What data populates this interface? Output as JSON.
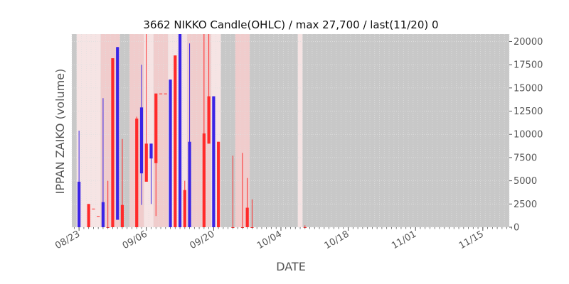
{
  "chart_data": {
    "type": "candlestick",
    "title": "3662 NIKKO Candle(OHLC) / max 27,700 / last(11/20) 0",
    "xlabel": "DATE",
    "ylabel": "IPPAN ZAIKO (volume)",
    "ylim": [
      0,
      20800
    ],
    "y_ticks": [
      0,
      2500,
      5000,
      7500,
      10000,
      12500,
      15000,
      17500,
      20000
    ],
    "y_tick_labels": [
      "0",
      "2500",
      "5000",
      "7500",
      "10000",
      "12500",
      "15000",
      "17500",
      "20000"
    ],
    "y_axis_side": "right",
    "x_range": [
      "2023-08-22",
      "2023-11-21"
    ],
    "x_ticks": [
      {
        "date": "2023-08-23",
        "label": "08/23"
      },
      {
        "date": "2023-09-06",
        "label": "09/06"
      },
      {
        "date": "2023-09-20",
        "label": "09/20"
      },
      {
        "date": "2023-10-04",
        "label": "10/04"
      },
      {
        "date": "2023-10-18",
        "label": "10/18"
      },
      {
        "date": "2023-11-01",
        "label": "11/01"
      },
      {
        "date": "2023-11-15",
        "label": "11/15"
      }
    ],
    "grid": true,
    "colors": {
      "up": "#ff2a2a",
      "down": "#3a24e6",
      "panel_bg": "#c8c8c8",
      "pink_band": "#f0cccc",
      "light_band": "#f6e4e4",
      "grid": "#e0e0e0"
    },
    "background_bands": [
      {
        "start": "2023-08-23",
        "end": "2023-08-24",
        "tone": "light"
      },
      {
        "start": "2023-08-24",
        "end": "2023-08-28",
        "tone": "light"
      },
      {
        "start": "2023-08-28",
        "end": "2023-09-01",
        "tone": "pink"
      },
      {
        "start": "2023-09-03",
        "end": "2023-09-06",
        "tone": "pink"
      },
      {
        "start": "2023-09-06",
        "end": "2023-09-08",
        "tone": "light"
      },
      {
        "start": "2023-09-08",
        "end": "2023-09-11",
        "tone": "pink"
      },
      {
        "start": "2023-09-11",
        "end": "2023-09-15",
        "tone": "light"
      },
      {
        "start": "2023-09-15",
        "end": "2023-09-20",
        "tone": "pink"
      },
      {
        "start": "2023-09-20",
        "end": "2023-09-22",
        "tone": "light"
      },
      {
        "start": "2023-09-25",
        "end": "2023-09-28",
        "tone": "pink"
      },
      {
        "start": "2023-10-08",
        "end": "2023-10-09",
        "tone": "light"
      }
    ],
    "candles": [
      {
        "date": "2023-08-23",
        "open": 4900,
        "high": 10400,
        "low": 0,
        "close": 0
      },
      {
        "date": "2023-08-25",
        "open": 0,
        "high": 2500,
        "low": 0,
        "close": 2500
      },
      {
        "date": "2023-08-26",
        "open": 2000,
        "high": 2000,
        "low": 2000,
        "close": 2000
      },
      {
        "date": "2023-08-27",
        "open": 1200,
        "high": 1200,
        "low": 1200,
        "close": 1200
      },
      {
        "date": "2023-08-28",
        "open": 2700,
        "high": 13900,
        "low": 0,
        "close": 0
      },
      {
        "date": "2023-08-29",
        "open": 0,
        "high": 5000,
        "low": 0,
        "close": 0
      },
      {
        "date": "2023-08-30",
        "open": 0,
        "high": 18200,
        "low": 0,
        "close": 18200
      },
      {
        "date": "2023-08-31",
        "open": 19400,
        "high": 19400,
        "low": 800,
        "close": 800
      },
      {
        "date": "2023-09-01",
        "open": 0,
        "high": 9500,
        "low": 0,
        "close": 2400
      },
      {
        "date": "2023-09-04",
        "open": 0,
        "high": 11900,
        "low": 0,
        "close": 11700
      },
      {
        "date": "2023-09-05",
        "open": 12900,
        "high": 17500,
        "low": 2400,
        "close": 5800
      },
      {
        "date": "2023-09-06",
        "open": 4900,
        "high": 20800,
        "low": 4900,
        "close": 9000
      },
      {
        "date": "2023-09-07",
        "open": 9000,
        "high": 9000,
        "low": 2500,
        "close": 7400
      },
      {
        "date": "2023-09-08",
        "open": 6900,
        "high": 14400,
        "low": 1200,
        "close": 14400
      },
      {
        "date": "2023-09-09",
        "open": 14400,
        "high": 14400,
        "low": 14400,
        "close": 14400
      },
      {
        "date": "2023-09-10",
        "open": 14400,
        "high": 14400,
        "low": 14400,
        "close": 14400
      },
      {
        "date": "2023-09-11",
        "open": 15900,
        "high": 15900,
        "low": 0,
        "close": 0
      },
      {
        "date": "2023-09-12",
        "open": 0,
        "high": 18500,
        "low": 0,
        "close": 18500
      },
      {
        "date": "2023-09-13",
        "open": 20800,
        "high": 20800,
        "low": 0,
        "close": 0
      },
      {
        "date": "2023-09-14",
        "open": 0,
        "high": 5000,
        "low": 0,
        "close": 4000
      },
      {
        "date": "2023-09-15",
        "open": 9200,
        "high": 19800,
        "low": 0,
        "close": 0
      },
      {
        "date": "2023-09-18",
        "open": 0,
        "high": 20800,
        "low": 0,
        "close": 10100
      },
      {
        "date": "2023-09-19",
        "open": 9000,
        "high": 20800,
        "low": 9000,
        "close": 14100
      },
      {
        "date": "2023-09-20",
        "open": 14100,
        "high": 14100,
        "low": 0,
        "close": 0
      },
      {
        "date": "2023-09-21",
        "open": 0,
        "high": 9200,
        "low": 0,
        "close": 9200
      },
      {
        "date": "2023-09-24",
        "open": 0,
        "high": 7700,
        "low": 0,
        "close": 0
      },
      {
        "date": "2023-09-26",
        "open": 0,
        "high": 8000,
        "low": 0,
        "close": 0
      },
      {
        "date": "2023-09-27",
        "open": 0,
        "high": 5300,
        "low": 0,
        "close": 2100
      },
      {
        "date": "2023-09-28",
        "open": 0,
        "high": 3000,
        "low": 0,
        "close": 0
      },
      {
        "date": "2023-10-09",
        "open": 0,
        "high": 200,
        "low": 0,
        "close": 0
      }
    ]
  }
}
